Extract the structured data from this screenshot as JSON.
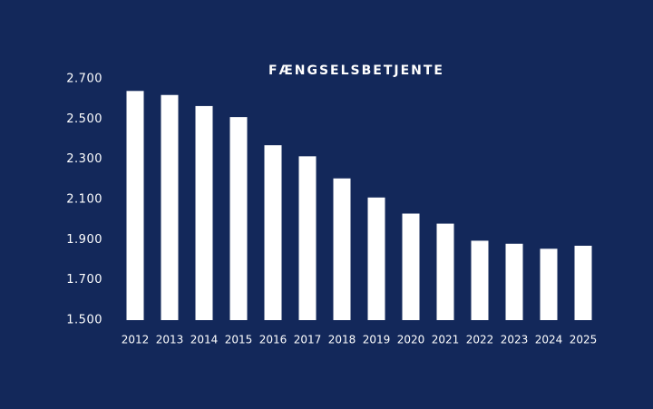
{
  "chart_data": {
    "type": "bar",
    "title": "FÆNGSELSBETJENTE",
    "categories": [
      "2012",
      "2013",
      "2014",
      "2015",
      "2016",
      "2017",
      "2018",
      "2019",
      "2020",
      "2021",
      "2022",
      "2023",
      "2024",
      "2025"
    ],
    "values": [
      2640,
      2620,
      2565,
      2510,
      2370,
      2315,
      2205,
      2110,
      2030,
      1980,
      1895,
      1880,
      1855,
      1870
    ],
    "color": "#ffffff",
    "ylim": [
      1500,
      2700
    ],
    "yticks": [
      {
        "value": 1500,
        "label": "1.500"
      },
      {
        "value": 1700,
        "label": "1.700"
      },
      {
        "value": 1900,
        "label": "1.900"
      },
      {
        "value": 2100,
        "label": "2.100"
      },
      {
        "value": 2300,
        "label": "2.300"
      },
      {
        "value": 2500,
        "label": "2.500"
      },
      {
        "value": 2700,
        "label": "2.700"
      }
    ],
    "grid": false
  }
}
